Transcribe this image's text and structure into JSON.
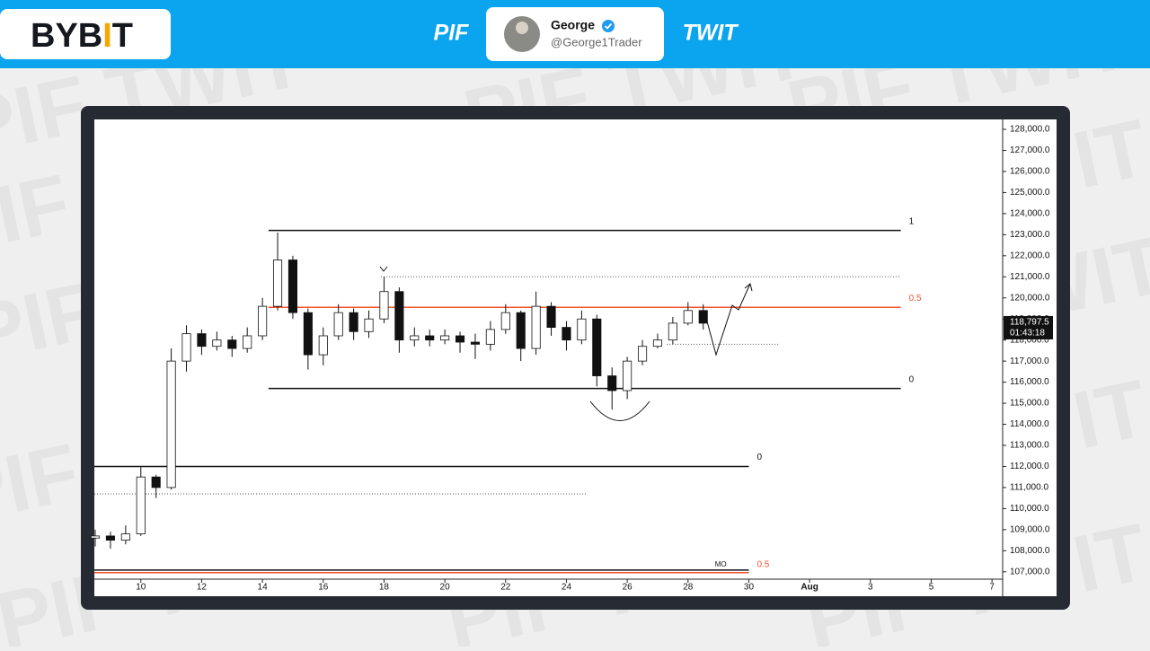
{
  "header": {
    "logo": [
      "BYB",
      "I",
      "T"
    ],
    "left_tag": "PIF",
    "right_tag": "TWIT",
    "name": "George",
    "handle": "@George1Trader"
  },
  "watermark": "PIF TWIT",
  "chart_data": {
    "type": "candlestick",
    "x": [
      8.5,
      9,
      9.5,
      10,
      10.5,
      11,
      11.5,
      12,
      12.5,
      13,
      13.5,
      14,
      14.5,
      15,
      15.5,
      16,
      16.5,
      17,
      17.5,
      18,
      18.5,
      19,
      19.5,
      20,
      20.5,
      21,
      21.5,
      22,
      22.5,
      23,
      23.5,
      24,
      24.5,
      25,
      25.5,
      26,
      26.5,
      27,
      27.5,
      28,
      28.5
    ],
    "open": [
      108600,
      108700,
      108500,
      108800,
      111500,
      111000,
      117000,
      118300,
      117700,
      118000,
      117600,
      118200,
      119600,
      121800,
      119300,
      117300,
      118200,
      119300,
      118400,
      119000,
      120300,
      118000,
      118200,
      118000,
      118200,
      117900,
      117800,
      118500,
      119300,
      117600,
      119600,
      118600,
      118000,
      119000,
      116300,
      115600,
      117000,
      117700,
      118000,
      118800,
      119400
    ],
    "high": [
      109000,
      108900,
      109200,
      112000,
      111600,
      117600,
      118700,
      118500,
      118400,
      118200,
      118600,
      120000,
      123100,
      122000,
      119500,
      118600,
      119700,
      119500,
      119400,
      121000,
      120500,
      118600,
      118500,
      118500,
      118400,
      118300,
      118900,
      119700,
      119400,
      120300,
      119800,
      118900,
      119400,
      119200,
      116700,
      117200,
      118000,
      118300,
      119100,
      119800,
      119700
    ],
    "low": [
      108200,
      108100,
      108300,
      108700,
      110500,
      110900,
      116500,
      117300,
      117500,
      117200,
      117400,
      118000,
      119400,
      119000,
      116600,
      116800,
      118000,
      118000,
      118100,
      118800,
      117400,
      117700,
      117700,
      117800,
      117400,
      117100,
      117500,
      118300,
      117000,
      117300,
      118200,
      117500,
      117800,
      115800,
      114700,
      115200,
      116800,
      117600,
      117800,
      118700,
      118500
    ],
    "close": [
      108700,
      108500,
      108800,
      111500,
      111000,
      117000,
      118300,
      117700,
      118000,
      117600,
      118200,
      119600,
      121800,
      119300,
      117300,
      118200,
      119300,
      118400,
      119000,
      120300,
      118000,
      118200,
      118000,
      118200,
      117900,
      117800,
      118500,
      119300,
      117600,
      119600,
      118600,
      118000,
      119000,
      116300,
      115600,
      117000,
      117700,
      118000,
      118800,
      119400,
      118800
    ],
    "up_color": "#ffffff",
    "down_color": "#111111",
    "xlim": [
      8.47,
      38.35
    ],
    "xticks": [
      10,
      12,
      14,
      16,
      18,
      20,
      22,
      24,
      26,
      28,
      30,
      {
        "value": 32,
        "label": "Aug"
      },
      {
        "value": 34,
        "label": "3"
      },
      {
        "value": 36,
        "label": "5"
      },
      {
        "value": 38,
        "label": "7"
      }
    ],
    "ylim": [
      106650,
      128470
    ],
    "yticks": [
      {
        "value": 107000,
        "label": "107,000.0"
      },
      {
        "value": 108000,
        "label": "108,000.0"
      },
      {
        "value": 109000,
        "label": "109,000.0"
      },
      {
        "value": 110000,
        "label": "110,000.0"
      },
      {
        "value": 111000,
        "label": "111,000.0"
      },
      {
        "value": 112000,
        "label": "112,000.0"
      },
      {
        "value": 113000,
        "label": "113,000.0"
      },
      {
        "value": 114000,
        "label": "114,000.0"
      },
      {
        "value": 115000,
        "label": "115,000.0"
      },
      {
        "value": 116000,
        "label": "116,000.0"
      },
      {
        "value": 117000,
        "label": "117,000.0"
      },
      {
        "value": 118000,
        "label": "118,000.0"
      },
      {
        "value": 119000,
        "label": "119,000.0"
      },
      {
        "value": 120000,
        "label": "120,000.0"
      },
      {
        "value": 121000,
        "label": "121,000.0"
      },
      {
        "value": 122000,
        "label": "122,000.0"
      },
      {
        "value": 123000,
        "label": "123,000.0"
      },
      {
        "value": 124000,
        "label": "124,000.0"
      },
      {
        "value": 125000,
        "label": "125,000.0"
      },
      {
        "value": 126000,
        "label": "126,000.0"
      },
      {
        "value": 127000,
        "label": "127,000.0"
      },
      {
        "value": 128000,
        "label": "128,000.0"
      }
    ],
    "levels": [
      {
        "value": 123200,
        "x": [
          14.2,
          35
        ],
        "color": "#111111",
        "style": "solid",
        "label": "1"
      },
      {
        "value": 119550,
        "x": [
          14.2,
          35
        ],
        "color": "#f0552f",
        "style": "solid",
        "label": "0.5"
      },
      {
        "value": 115700,
        "x": [
          14.2,
          35
        ],
        "color": "#111111",
        "style": "solid",
        "label": "0"
      },
      {
        "value": 121000,
        "x": [
          17.9,
          35
        ],
        "color": "#555555",
        "style": "dotted"
      },
      {
        "value": 117800,
        "x": [
          27.3,
          31
        ],
        "color": "#555555",
        "style": "dotted"
      },
      {
        "value": 112000,
        "x": [
          8.47,
          30
        ],
        "color": "#111111",
        "style": "solid",
        "label": "0"
      },
      {
        "value": 110700,
        "x": [
          8.47,
          24.7
        ],
        "color": "#555555",
        "style": "dotted"
      },
      {
        "value": 107080,
        "x": [
          8.47,
          30
        ],
        "color": "#111111",
        "style": "solid"
      },
      {
        "value": 106960,
        "x": [
          8.47,
          30
        ],
        "color": "#f0552f",
        "style": "solid",
        "label": "0.5"
      }
    ],
    "annotation": "MO",
    "last_price": {
      "value": 118797.5,
      "label": "118,797.5"
    },
    "countdown": "01:43:18"
  }
}
